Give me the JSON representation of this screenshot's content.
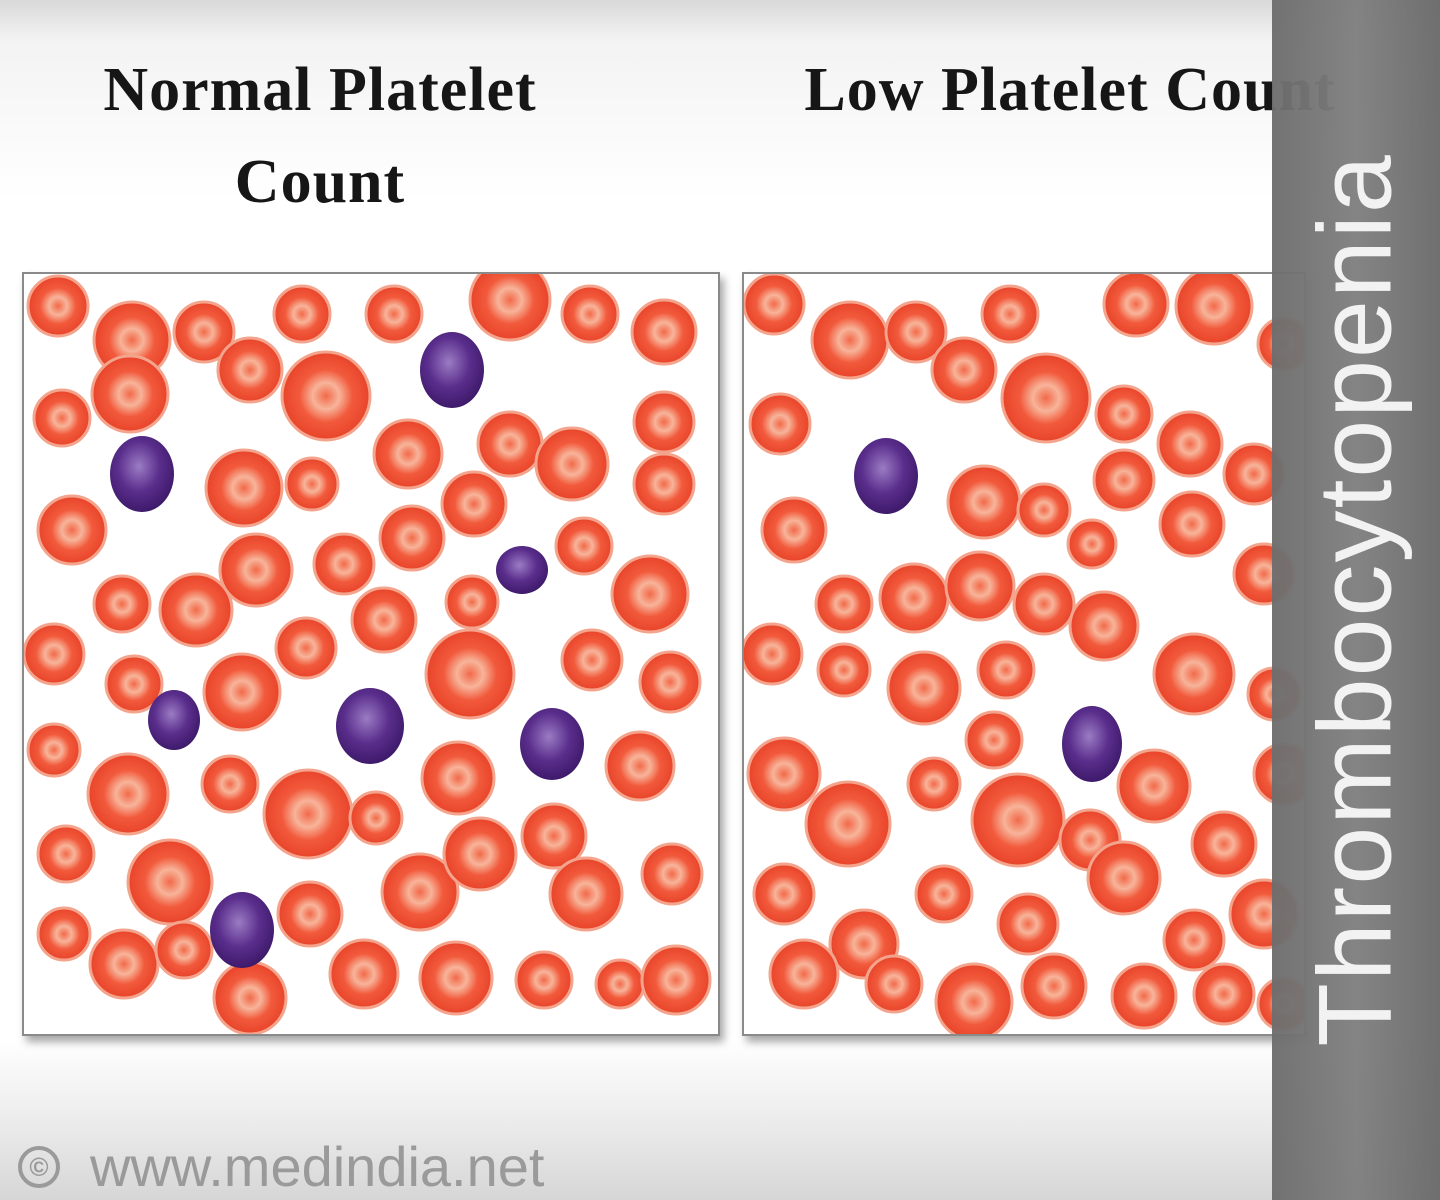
{
  "titles": {
    "normal": "Normal Platelet Count",
    "low": "Low Platelet Count"
  },
  "side_label": "Thrombocytopenia",
  "footer": {
    "copyright_symbol": "©",
    "site": "www.medindia.net"
  },
  "colors": {
    "red_cell": "#f25a3c",
    "red_cell_edge": "#e8442a",
    "platelet": "#5a2e8c",
    "banner": "#777777"
  },
  "counts": {
    "normal_panel_platelets": 7,
    "low_panel_platelets": 2
  }
}
